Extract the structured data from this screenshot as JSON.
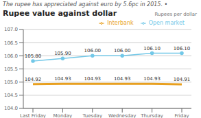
{
  "chart_data": {
    "type": "line",
    "title": "Rupee value against dollar",
    "subtitle": "The rupee has appreciated against euro by 5.6pc in 2015. •",
    "ylabel": "Rupees per dollar",
    "categories": [
      "Last Friday",
      "Monday",
      "Tuesday",
      "Wednesday",
      "Thursday",
      "Friday"
    ],
    "series": [
      {
        "name": "Interbank",
        "color": "#E8A020",
        "values": [
          104.92,
          104.93,
          104.93,
          104.93,
          104.93,
          104.91
        ]
      },
      {
        "name": "Open market",
        "color": "#72C8E8",
        "marker": "o",
        "values": [
          105.8,
          105.9,
          106.0,
          106.0,
          106.1,
          106.1
        ],
        "value_labels": [
          "105.80",
          "105.90",
          "106.00",
          "106.00",
          "106.10",
          "106.10"
        ]
      }
    ],
    "ylim": [
      104.0,
      107.0
    ],
    "yticks": [
      {
        "value": 104.0,
        "label": "104.0"
      },
      {
        "value": 104.5,
        "label": "104.5"
      },
      {
        "value": 105.0,
        "label": "105.0"
      },
      {
        "value": 105.5,
        "label": "105.5"
      },
      {
        "value": 106.0,
        "label": "106.0"
      },
      {
        "value": 106.5,
        "label": "106.5"
      },
      {
        "value": 107.0,
        "label": "107.0"
      }
    ],
    "grid": true,
    "legend": "upper right",
    "data_labels": true
  }
}
